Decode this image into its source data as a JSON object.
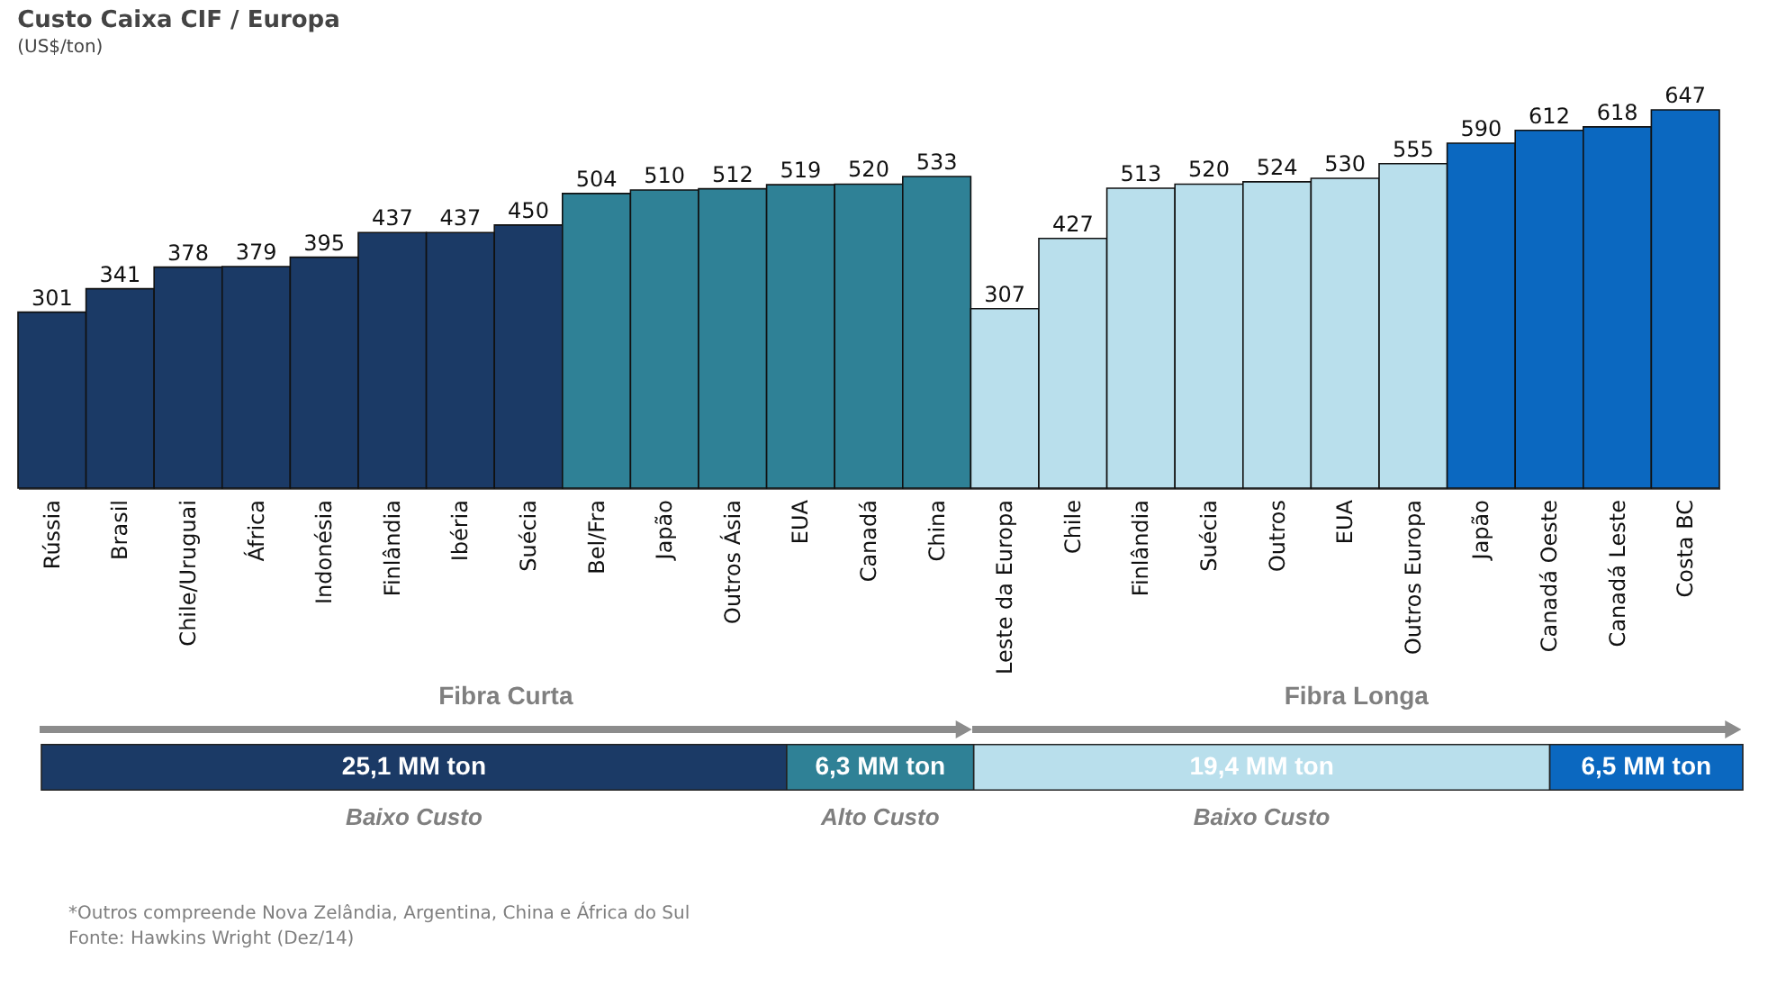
{
  "chart_data": [
    {
      "type": "bar",
      "title": "Custo Caixa CIF / Europa",
      "subtitle": "(US$/ton)",
      "categories": [
        "Rússia",
        "Brasil",
        "Chile/Uruguai",
        "África",
        "Indonésia",
        "Finlândia",
        "Ibéria",
        "Suécia",
        "Bel/Fra",
        "Japão",
        "Outros Ásia",
        "EUA",
        "Canadá",
        "China",
        "Leste da Europa",
        "Chile",
        "Finlândia",
        "Suécia",
        "Outros",
        "EUA",
        "Outros Europa",
        "Japão",
        "Canadá Oeste",
        "Canadá Leste",
        "Costa BC"
      ],
      "values": [
        301,
        341,
        378,
        379,
        395,
        437,
        437,
        450,
        504,
        510,
        512,
        519,
        520,
        533,
        307,
        427,
        513,
        520,
        524,
        530,
        555,
        590,
        612,
        618,
        647
      ],
      "colors": [
        "#1b3a66",
        "#1b3a66",
        "#1b3a66",
        "#1b3a66",
        "#1b3a66",
        "#1b3a66",
        "#1b3a66",
        "#1b3a66",
        "#2f8196",
        "#2f8196",
        "#2f8196",
        "#2f8196",
        "#2f8196",
        "#2f8196",
        "#b9dfec",
        "#b9dfec",
        "#b9dfec",
        "#b9dfec",
        "#b9dfec",
        "#b9dfec",
        "#b9dfec",
        "#0b68c0",
        "#0b68c0",
        "#0b68c0",
        "#0b68c0"
      ],
      "data_labels": true,
      "tick_labels": "x"
    },
    {
      "type": "bar",
      "orientation": "horizontal",
      "stacked": true,
      "categories": [
        null
      ],
      "series": [
        {
          "name": "Baixo Custo",
          "color": "#1b3a66",
          "values": [
            25.1
          ],
          "value_labels": [
            "25,1 MM ton"
          ]
        },
        {
          "name": "Alto Custo",
          "color": "#2f8196",
          "values": [
            6.3
          ],
          "value_labels": [
            "6,3 MM ton"
          ]
        },
        {
          "name": "Baixo Custo",
          "color": "#b9dfec",
          "values": [
            19.4
          ],
          "value_labels": [
            "19,4 MM ton"
          ]
        },
        {
          "color": "#0b68c0",
          "values": [
            6.5
          ],
          "value_labels": [
            "6,5  MM ton"
          ]
        }
      ],
      "annotations": [
        "Fibra Curta",
        "Fibra Longa",
        "*Outros compreende Nova Zelândia, Argentina, China e África do Sul",
        "Fonte: Hawkins Wright (Dez/14)"
      ],
      "tick_labels": false
    }
  ]
}
